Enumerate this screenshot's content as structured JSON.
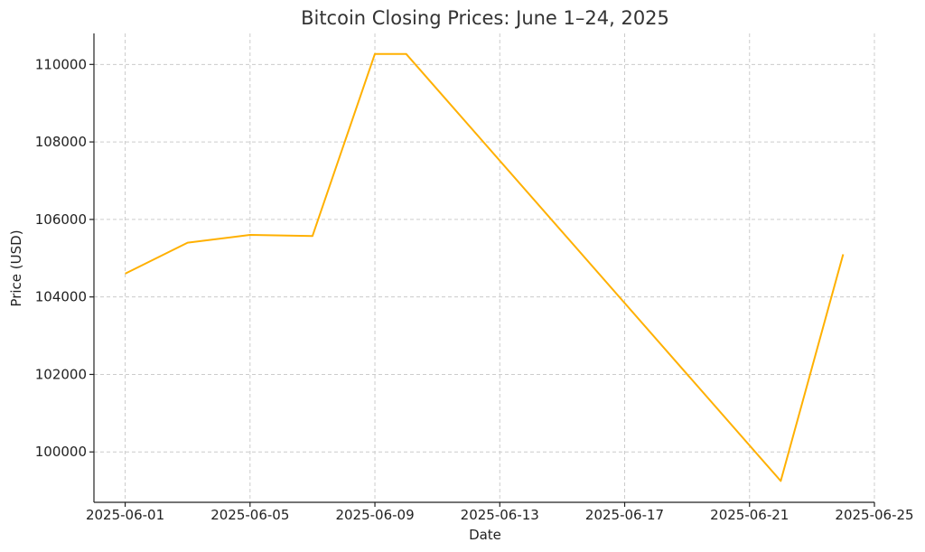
{
  "chart_data": {
    "type": "line",
    "title": "Bitcoin Closing Prices: June 1–24, 2025",
    "xlabel": "Date",
    "ylabel": "Price (USD)",
    "x_ticks": [
      "2025-06-01",
      "2025-06-05",
      "2025-06-09",
      "2025-06-13",
      "2025-06-17",
      "2025-06-21",
      "2025-06-25"
    ],
    "y_ticks": [
      100000,
      102000,
      104000,
      106000,
      108000,
      110000
    ],
    "xlim": [
      "2025-05-31",
      "2025-06-25"
    ],
    "ylim": [
      98700,
      110800
    ],
    "grid": true,
    "line_color": "#FFB000",
    "series": [
      {
        "x": [
          "2025-06-01",
          "2025-06-03",
          "2025-06-05",
          "2025-06-07",
          "2025-06-09",
          "2025-06-10",
          "2025-06-22",
          "2025-06-24"
        ],
        "values": [
          104600,
          105400,
          105600,
          105570,
          110270,
          110270,
          99250,
          105100
        ]
      }
    ]
  }
}
